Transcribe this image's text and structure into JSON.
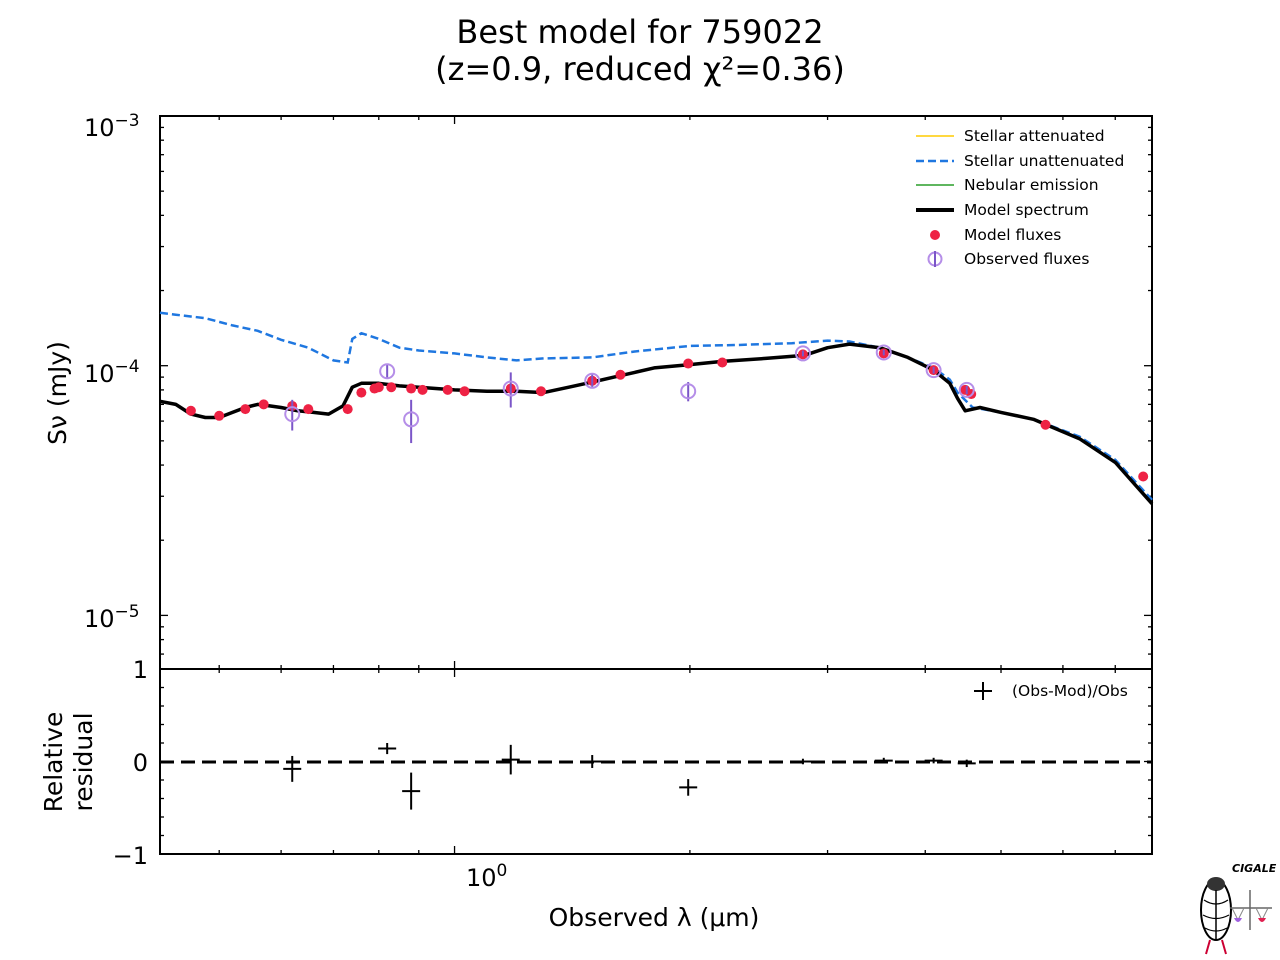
{
  "title_line1": "Best model for 759022",
  "title_line2": "(z=0.9, reduced χ²=0.36)",
  "logo_text": "CIGALE",
  "chart_data": [
    {
      "type": "line",
      "panel": "sed",
      "xlabel": "Observed λ (μm)",
      "ylabel": "Sν (mJy)",
      "xscale": "log",
      "yscale": "log",
      "xlim": [
        0.42,
        7.8
      ],
      "ylim": [
        6.1e-06,
        0.001
      ],
      "ytick_labels": [
        {
          "value": 1e-05,
          "base": "10",
          "exp": "−5"
        },
        {
          "value": 0.0001,
          "base": "10",
          "exp": "−4"
        },
        {
          "value": 0.001,
          "base": "10",
          "exp": "−3"
        }
      ],
      "xtick_label": {
        "value": 1.0,
        "base": "10",
        "exp": "0"
      },
      "legend_location": "upper right",
      "legend": [
        {
          "label": "Stellar attenuated",
          "color": "#ffcc00",
          "style": "solid-thin"
        },
        {
          "label": "Stellar unattenuated",
          "color": "#1f77e0",
          "style": "dashed"
        },
        {
          "label": "Nebular emission",
          "color": "#2a9d2a",
          "style": "solid-thin"
        },
        {
          "label": "Model spectrum",
          "color": "#000000",
          "style": "solid-thick"
        },
        {
          "label": "Model fluxes",
          "color": "#ee2244",
          "style": "dot"
        },
        {
          "label": "Observed fluxes",
          "color": "#b58ee8",
          "style": "open-circle-errorbar"
        }
      ],
      "series": [
        {
          "name": "Stellar unattenuated",
          "x": [
            0.42,
            0.44,
            0.48,
            0.52,
            0.56,
            0.6,
            0.65,
            0.7,
            0.73,
            0.74,
            0.76,
            0.8,
            0.85,
            0.9,
            1.0,
            1.1,
            1.2,
            1.3,
            1.5,
            1.7,
            2.0,
            2.3,
            2.7,
            3.0,
            3.2,
            3.5,
            3.8,
            4.1,
            4.3,
            4.4,
            4.6,
            5.0,
            5.5,
            6.3,
            7.0,
            7.8
          ],
          "y": [
            0.000163,
            0.00016,
            0.000155,
            0.000145,
            0.000138,
            0.000127,
            0.000118,
            0.000105,
            0.000103,
            0.000128,
            0.000135,
            0.000128,
            0.000118,
            0.000115,
            0.000112,
            0.000108,
            0.000105,
            0.000107,
            0.000108,
            0.000114,
            0.00012,
            0.000121,
            0.000123,
            0.000126,
            0.000125,
            0.000118,
            0.000108,
            9.8e-05,
            8.8e-05,
            7.8e-05,
            6.8e-05,
            6.5e-05,
            6.1e-05,
            5.2e-05,
            4.2e-05,
            2.9e-05
          ]
        },
        {
          "name": "Model spectrum",
          "x": [
            0.42,
            0.44,
            0.46,
            0.48,
            0.5,
            0.52,
            0.54,
            0.56,
            0.58,
            0.6,
            0.63,
            0.66,
            0.69,
            0.72,
            0.74,
            0.76,
            0.8,
            0.85,
            0.9,
            1.0,
            1.1,
            1.2,
            1.3,
            1.4,
            1.5,
            1.6,
            1.7,
            1.8,
            2.0,
            2.2,
            2.5,
            2.8,
            3.0,
            3.2,
            3.5,
            3.8,
            4.1,
            4.3,
            4.4,
            4.5,
            4.7,
            5.0,
            5.5,
            6.3,
            7.0,
            7.8
          ],
          "y": [
            7.2e-05,
            7e-05,
            6.4e-05,
            6.2e-05,
            6.2e-05,
            6.5e-05,
            6.8e-05,
            7e-05,
            6.9e-05,
            6.8e-05,
            6.6e-05,
            6.5e-05,
            6.4e-05,
            6.9e-05,
            8.2e-05,
            8.5e-05,
            8.5e-05,
            8.3e-05,
            8.2e-05,
            8e-05,
            7.9e-05,
            7.9e-05,
            7.8e-05,
            8.2e-05,
            8.6e-05,
            9e-05,
            9.4e-05,
            9.8e-05,
            0.000101,
            0.000104,
            0.000107,
            0.00011,
            0.000118,
            0.000122,
            0.000118,
            0.000108,
            9.6e-05,
            8.5e-05,
            7.4e-05,
            6.6e-05,
            6.8e-05,
            6.5e-05,
            6.1e-05,
            5.1e-05,
            4.1e-05,
            2.8e-05
          ]
        },
        {
          "name": "Model fluxes",
          "x": [
            0.46,
            0.5,
            0.54,
            0.57,
            0.62,
            0.65,
            0.73,
            0.76,
            0.79,
            0.8,
            0.83,
            0.88,
            0.91,
            0.98,
            1.03,
            1.18,
            1.29,
            1.5,
            1.63,
            1.99,
            2.2,
            2.79,
            3.54,
            4.1,
            4.5,
            4.58,
            5.7,
            7.6
          ],
          "y": [
            6.6e-05,
            6.3e-05,
            6.7e-05,
            7e-05,
            6.9e-05,
            6.7e-05,
            6.7e-05,
            7.8e-05,
            8.1e-05,
            8.2e-05,
            8.2e-05,
            8.1e-05,
            8e-05,
            8e-05,
            7.9e-05,
            8.1e-05,
            7.9e-05,
            8.7e-05,
            9.2e-05,
            0.000102,
            0.000103,
            0.000111,
            0.000112,
            9.6e-05,
            8e-05,
            7.7e-05,
            5.8e-05,
            3.6e-05
          ]
        },
        {
          "name": "Observed fluxes",
          "x": [
            0.62,
            0.82,
            0.88,
            1.18,
            1.5,
            1.99,
            2.79,
            3.54,
            4.1,
            4.52
          ],
          "y": [
            6.4e-05,
            9.5e-05,
            6.1e-05,
            8.1e-05,
            8.7e-05,
            7.9e-05,
            0.000112,
            0.000113,
            9.6e-05,
            8e-05
          ],
          "yerr": [
            9e-06,
            6e-06,
            1.2e-05,
            1.3e-05,
            6e-06,
            7e-06,
            3e-06,
            3e-06,
            3e-06,
            3e-06
          ]
        }
      ]
    },
    {
      "type": "scatter",
      "panel": "residual",
      "xlabel": "Observed λ (μm)",
      "ylabel": "Relative residual",
      "xscale": "log",
      "xlim": [
        0.42,
        7.8
      ],
      "ylim": [
        -1,
        1
      ],
      "ytick_labels": [
        "1",
        "0",
        "−1"
      ],
      "legend": [
        {
          "label": "(Obs-Mod)/Obs",
          "marker": "+"
        }
      ],
      "series": [
        {
          "name": "(Obs-Mod)/Obs",
          "x": [
            0.62,
            0.82,
            0.88,
            1.18,
            1.5,
            1.99,
            2.79,
            3.54,
            4.1,
            4.52
          ],
          "y": [
            -0.08,
            0.14,
            -0.32,
            0.02,
            0.0,
            -0.28,
            0.0,
            0.01,
            0.01,
            -0.02
          ],
          "yerr": [
            0.14,
            0.06,
            0.2,
            0.16,
            0.07,
            0.09,
            0.03,
            0.03,
            0.03,
            0.04
          ]
        }
      ]
    }
  ]
}
